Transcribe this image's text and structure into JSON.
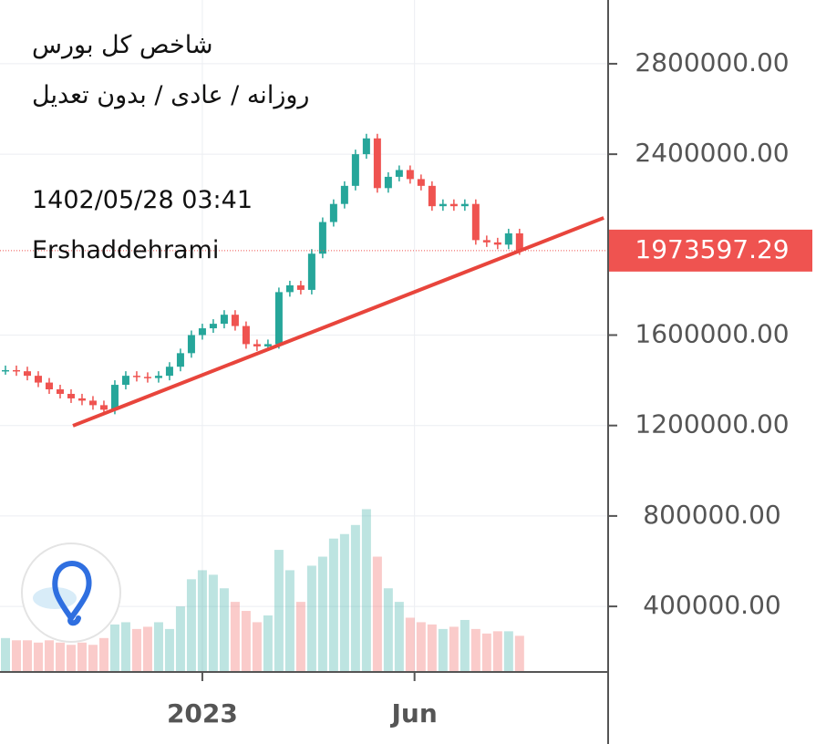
{
  "chart_data": {
    "type": "candlestick",
    "title": "شاخص کل بورس",
    "subtitle": "روزانه / عادی / بدون تعدیل",
    "timestamp": "1402/05/28 03:41",
    "author": "Ershaddehrami",
    "close": [
      1445000,
      1440000,
      1420000,
      1390000,
      1360000,
      1340000,
      1320000,
      1310000,
      1290000,
      1270000,
      1380000,
      1420000,
      1415000,
      1410000,
      1420000,
      1460000,
      1520000,
      1600000,
      1630000,
      1650000,
      1690000,
      1640000,
      1560000,
      1550000,
      1560000,
      1790000,
      1820000,
      1800000,
      1960000,
      2100000,
      2180000,
      2260000,
      2400000,
      2470000,
      2250000,
      2300000,
      2330000,
      2290000,
      2260000,
      2170000,
      2180000,
      2170000,
      2180000,
      2020000,
      2010000,
      2000000,
      2050000,
      1975000
    ],
    "volume": [
      260000,
      250000,
      250000,
      240000,
      250000,
      240000,
      230000,
      240000,
      230000,
      260000,
      320000,
      330000,
      300000,
      310000,
      330000,
      300000,
      400000,
      520000,
      560000,
      540000,
      480000,
      420000,
      380000,
      330000,
      360000,
      650000,
      560000,
      420000,
      580000,
      620000,
      700000,
      720000,
      760000,
      830000,
      620000,
      480000,
      420000,
      350000,
      330000,
      320000,
      300000,
      310000,
      340000,
      300000,
      280000,
      290000,
      290000,
      270000
    ],
    "up_color": "#26a69a",
    "down_color": "#ef5350",
    "last_price": 1973597.29,
    "last_price_label": "1973597.29",
    "trendline": {
      "x": [
        6.67,
        55.2
      ],
      "y": [
        1199000,
        2118500
      ],
      "color": "#e8453c"
    },
    "ylim": [
      110000,
      3082000
    ],
    "yticks": [
      {
        "value": 400000,
        "label": "400000.00"
      },
      {
        "value": 800000,
        "label": "800000.00"
      },
      {
        "value": 1200000,
        "label": "1200000.00"
      },
      {
        "value": 1600000,
        "label": "1600000.00"
      },
      {
        "value": 2400000,
        "label": "2400000.00"
      },
      {
        "value": 2800000,
        "label": "2800000.00"
      }
    ],
    "xlim": [
      0,
      55.6
    ],
    "xticks": [
      {
        "value": 18.5,
        "label": "2023"
      },
      {
        "value": 37.9,
        "label": "Jun"
      }
    ],
    "grid": true
  }
}
